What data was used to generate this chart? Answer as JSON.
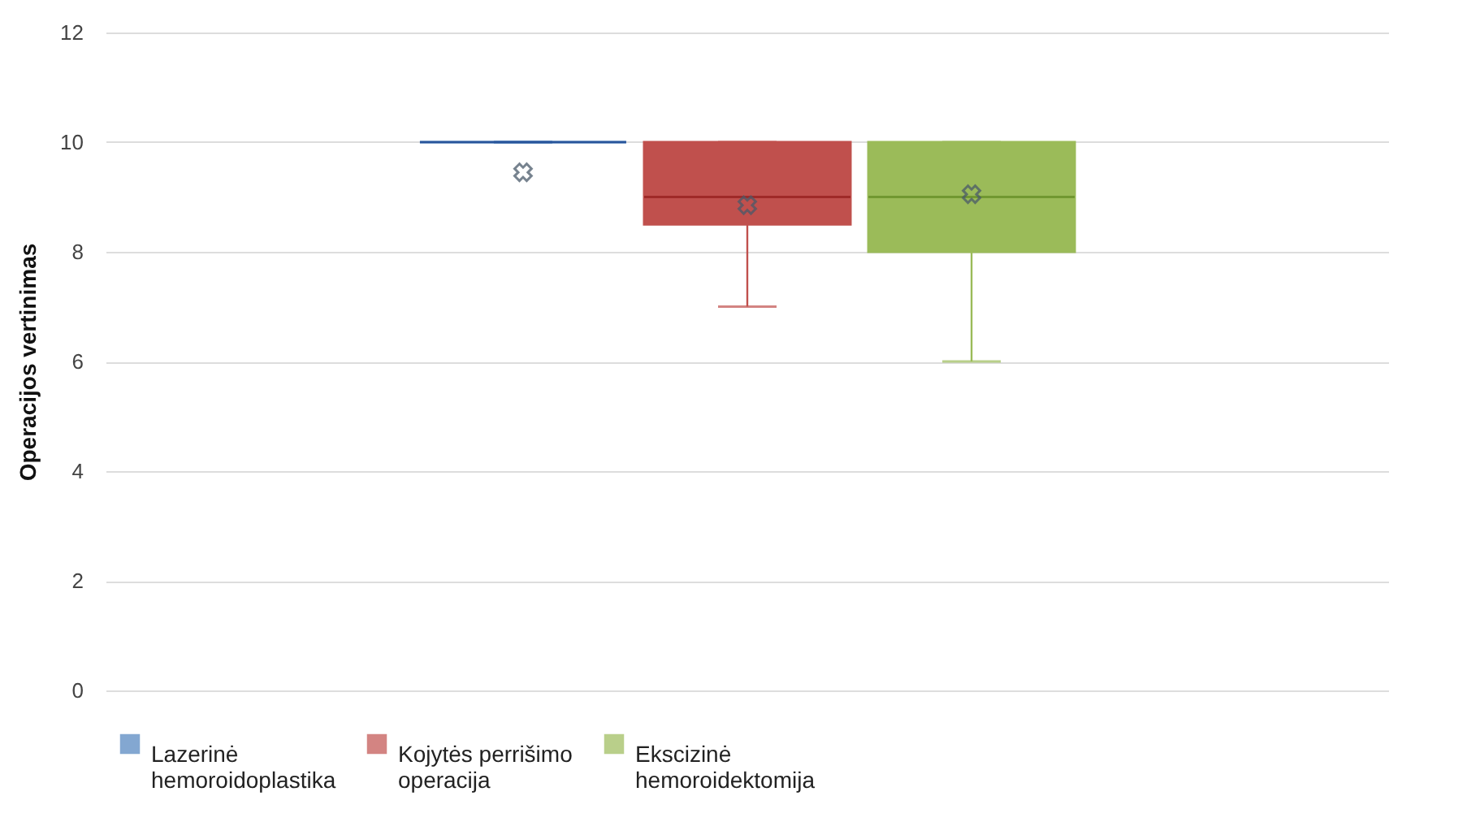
{
  "chart_data": {
    "type": "box",
    "ylabel": "Operacijos vertinimas",
    "categories": [
      null
    ],
    "series": [
      {
        "name": "Lazerinė hemoroidoplastika",
        "color": "#4f81bd",
        "boxes": [
          {
            "low": 10,
            "q1": 10,
            "median": 10,
            "q3": 10,
            "high": 10,
            "mean": 9.45
          }
        ]
      },
      {
        "name": "Kojytės perrišimo operacija",
        "color": "#c0504d",
        "boxes": [
          {
            "low": 7,
            "q1": 8.5,
            "median": 9,
            "q3": 10,
            "high": 10,
            "mean": 8.85
          }
        ]
      },
      {
        "name": "Ekscizinė hemoroidektomija",
        "color": "#9bbb59",
        "boxes": [
          {
            "low": 6,
            "q1": 8,
            "median": 9,
            "q3": 10,
            "high": 10,
            "mean": 9.05
          }
        ]
      }
    ],
    "ylim": [
      0,
      12
    ],
    "yticks": [
      0,
      2,
      4,
      6,
      8,
      10,
      12
    ],
    "grid": "y",
    "legend": "bottom",
    "tick_labels": "y",
    "marker": "cross"
  }
}
